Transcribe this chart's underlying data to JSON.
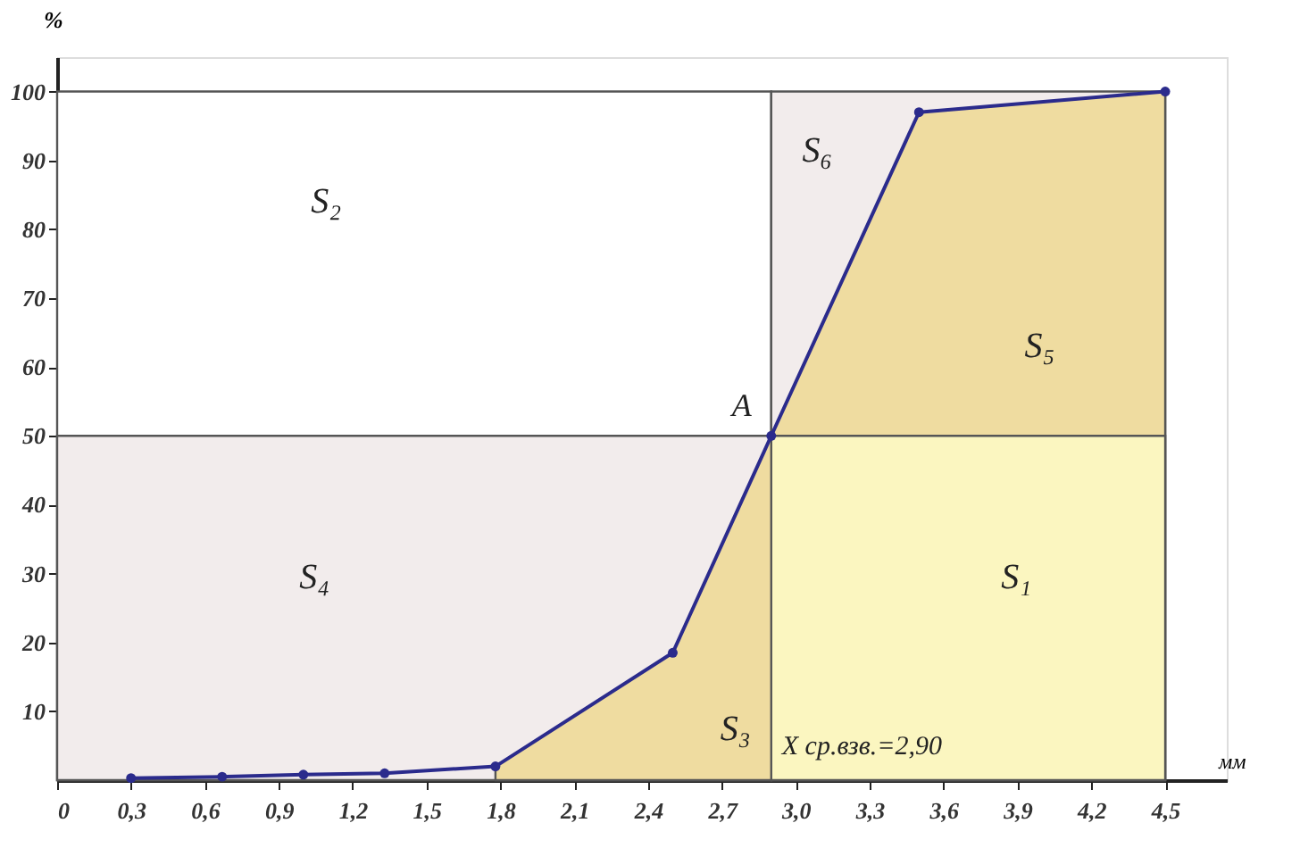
{
  "chart_data": {
    "type": "line",
    "xlabel": "мм",
    "ylabel": "%",
    "xlim": [
      0,
      4.75
    ],
    "ylim": [
      0,
      105
    ],
    "xticks": [
      0,
      {
        "value": 0.3,
        "label": "0,3"
      },
      {
        "value": 0.6,
        "label": "0,6"
      },
      {
        "value": 0.9,
        "label": "0,9"
      },
      {
        "value": 1.2,
        "label": "1,2"
      },
      {
        "value": 1.5,
        "label": "1,5"
      },
      {
        "value": 1.8,
        "label": "1,8"
      },
      {
        "value": 2.1,
        "label": "2,1"
      },
      {
        "value": 2.4,
        "label": "2,4"
      },
      {
        "value": 2.7,
        "label": "2,7"
      },
      {
        "value": 3.0,
        "label": "3,0"
      },
      {
        "value": 3.3,
        "label": "3,3"
      },
      {
        "value": 3.6,
        "label": "3,6"
      },
      {
        "value": 3.9,
        "label": "3,9"
      },
      {
        "value": 4.2,
        "label": "4,2"
      },
      {
        "value": 4.5,
        "label": "4,5"
      }
    ],
    "yticks": [
      10,
      20,
      30,
      40,
      50,
      60,
      70,
      80,
      90,
      100
    ],
    "series": [
      {
        "type": "area",
        "color": "#ffffff",
        "x": [
          0,
          2.9
        ],
        "values": [
          100,
          100
        ]
      },
      {
        "type": "area",
        "color": "#f2ecec",
        "x": [
          0,
          2.9
        ],
        "values": [
          50,
          50
        ]
      },
      {
        "type": "area",
        "color": "#f2ecec",
        "x": [
          2.9,
          4.5
        ],
        "values": [
          100,
          100
        ]
      },
      {
        "type": "area",
        "color": "#efdca0",
        "x": [
          1.78,
          2.5,
          2.9,
          3.5,
          4.5
        ],
        "values": [
          2,
          18.5,
          50,
          97,
          100
        ]
      },
      {
        "type": "area",
        "color": "#fbf6c0",
        "x": [
          2.9,
          4.5
        ],
        "values": [
          50,
          50
        ]
      },
      {
        "color": "#2b2b8c",
        "marker": "circle",
        "line_style": "solid",
        "x": [
          0.3,
          0.67,
          1.0,
          1.33,
          1.78,
          2.5,
          2.9,
          3.5,
          4.5
        ],
        "values": [
          0.3,
          0.5,
          0.8,
          1,
          2,
          18.5,
          50,
          97,
          100
        ]
      }
    ],
    "annotations": [
      "S₂",
      "S₄",
      "S₃",
      "S₆",
      "S₅",
      "S₁",
      {
        "text": "A",
        "x": 2.9,
        "y": 50
      },
      {
        "text": "X ср.взв.=2,90",
        "x": 2.9,
        "y": 5
      }
    ]
  }
}
